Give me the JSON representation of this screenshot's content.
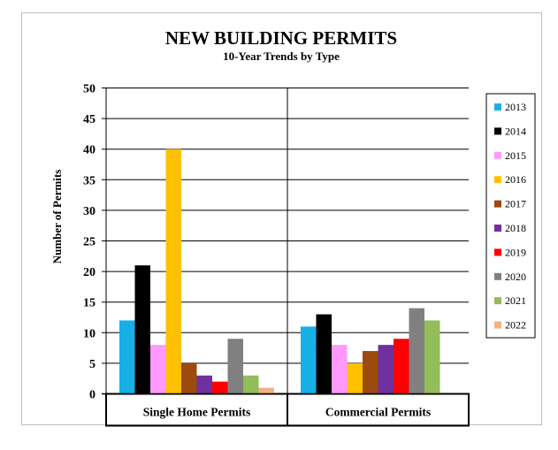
{
  "chart_data": {
    "type": "bar",
    "title": "NEW BUILDING PERMITS",
    "subtitle": "10-Year Trends by Type",
    "xlabel": "",
    "ylabel": "Number of Permits",
    "ylim": [
      0,
      50
    ],
    "yticks": [
      "0",
      "5",
      "10",
      "15",
      "20",
      "25",
      "30",
      "35",
      "40",
      "45",
      "50"
    ],
    "grid": true,
    "legend_position": "right",
    "categories": [
      "Single Home Permits",
      "Commercial Permits"
    ],
    "series": [
      {
        "name": "2013",
        "color": "#16b0e6",
        "values": [
          12,
          11
        ]
      },
      {
        "name": "2014",
        "color": "#000000",
        "values": [
          21,
          13
        ]
      },
      {
        "name": "2015",
        "color": "#ff99ff",
        "values": [
          8,
          8
        ]
      },
      {
        "name": "2016",
        "color": "#ffc000",
        "values": [
          40,
          5
        ]
      },
      {
        "name": "2017",
        "color": "#9c4a0e",
        "values": [
          5,
          7
        ]
      },
      {
        "name": "2018",
        "color": "#7030a0",
        "values": [
          3,
          8
        ]
      },
      {
        "name": "2019",
        "color": "#ff0000",
        "values": [
          2,
          9
        ]
      },
      {
        "name": "2020",
        "color": "#808080",
        "values": [
          9,
          14
        ]
      },
      {
        "name": "2021",
        "color": "#92bd57",
        "values": [
          3,
          12
        ]
      },
      {
        "name": "2022",
        "color": "#f4b183",
        "values": [
          1,
          0
        ]
      }
    ]
  }
}
